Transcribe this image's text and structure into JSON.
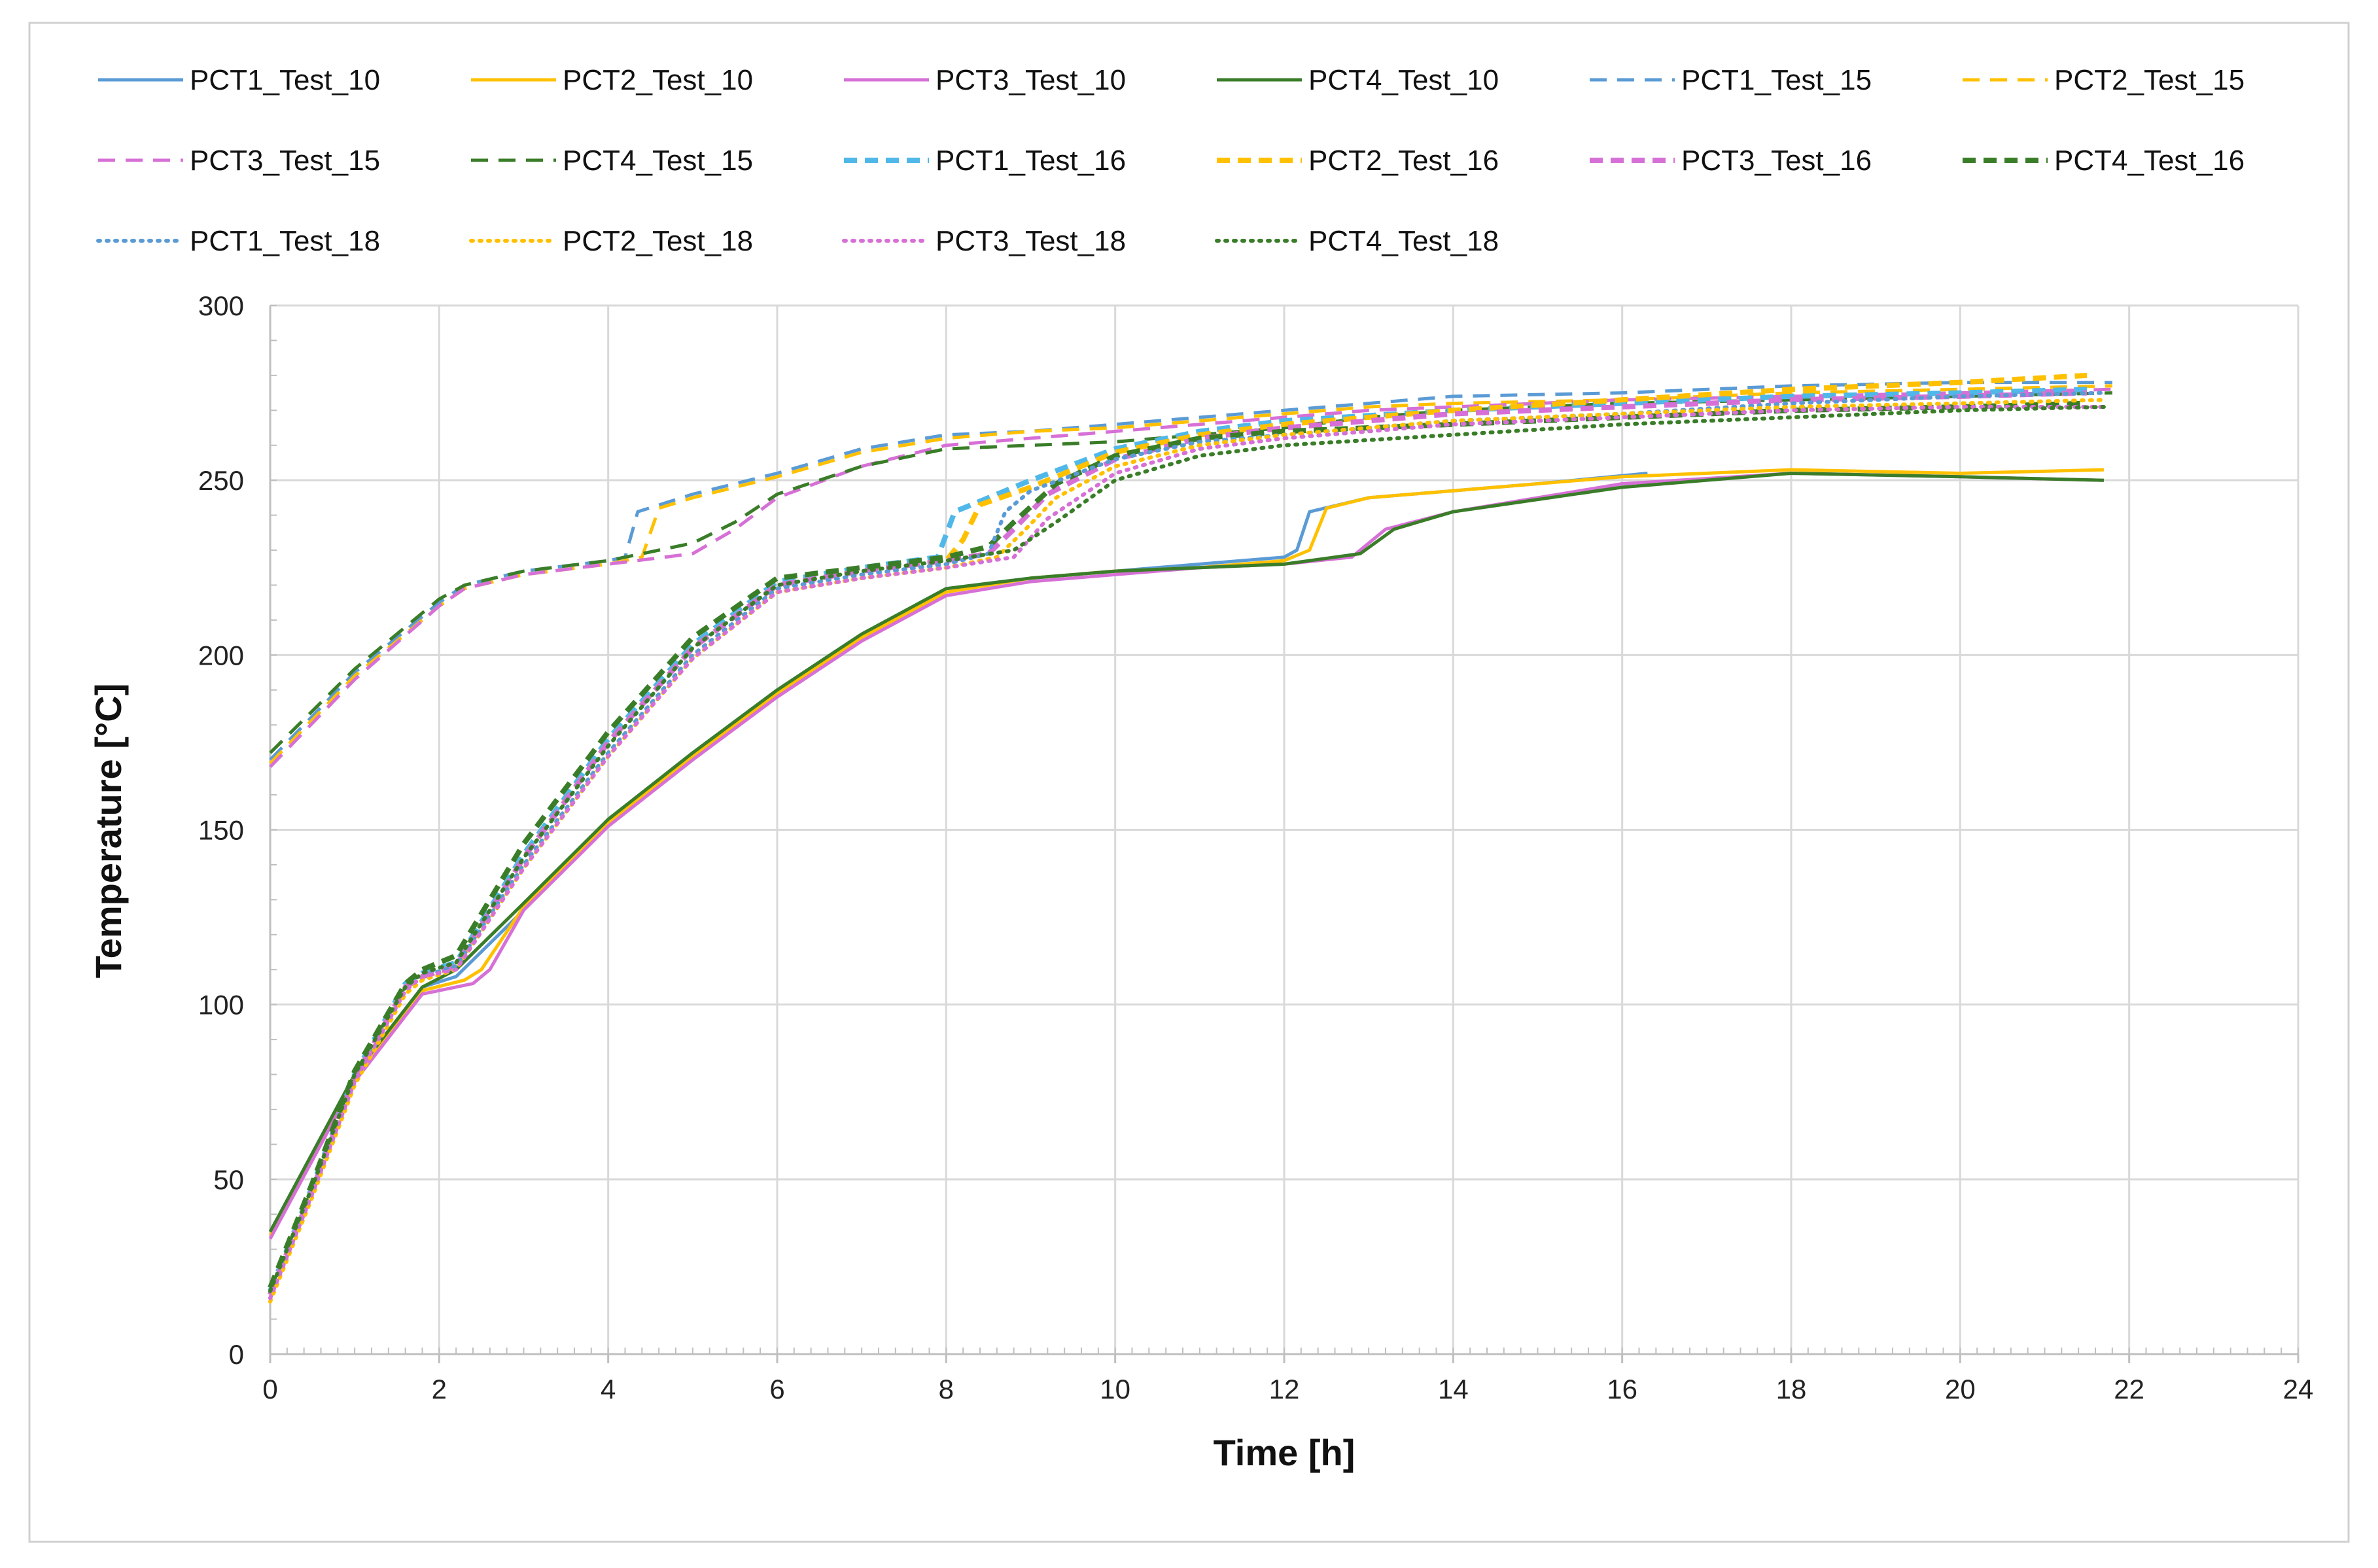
{
  "chart_data": {
    "type": "line",
    "title": "",
    "xlabel": "Time [h]",
    "ylabel": "Temperature [°C]",
    "xlim": [
      0,
      24
    ],
    "ylim": [
      0,
      300
    ],
    "xticks": [
      0,
      2,
      4,
      6,
      8,
      10,
      12,
      14,
      16,
      18,
      20,
      22,
      24
    ],
    "yticks": [
      0,
      50,
      100,
      150,
      200,
      250,
      300
    ],
    "grid": true,
    "legend_position": "top",
    "series": [
      {
        "name": "PCT1_Test_10",
        "color": "#5b9bd5",
        "style": "solid",
        "x": [
          0,
          1,
          1.8,
          2.2,
          3,
          4,
          5,
          6,
          7,
          8,
          9,
          10,
          11,
          12,
          12.15,
          12.3,
          13,
          14,
          15,
          16.3
        ],
        "y": [
          35,
          80,
          105,
          108,
          127,
          153,
          172,
          190,
          206,
          219,
          222,
          224,
          226,
          228,
          230,
          241,
          245,
          247,
          249,
          252
        ]
      },
      {
        "name": "PCT2_Test_10",
        "color": "#ffc000",
        "style": "solid",
        "x": [
          0,
          1,
          1.8,
          2.3,
          2.5,
          3,
          4,
          5,
          6,
          7,
          8,
          9,
          10,
          11,
          12,
          12.3,
          12.5,
          13,
          14,
          16,
          18,
          20,
          21.7
        ],
        "y": [
          34,
          79,
          104,
          107,
          110,
          128,
          152,
          171,
          189,
          205,
          218,
          222,
          224,
          225,
          227,
          230,
          242,
          245,
          247,
          251,
          253,
          252,
          253
        ]
      },
      {
        "name": "PCT3_Test_10",
        "color": "#d670d6",
        "style": "solid",
        "x": [
          0,
          1,
          1.8,
          2.4,
          2.6,
          3,
          4,
          5,
          6,
          7,
          8,
          9,
          10,
          11,
          12,
          12.8,
          13.2,
          14,
          16,
          18,
          20,
          21.7
        ],
        "y": [
          33,
          78,
          103,
          106,
          110,
          127,
          151,
          170,
          188,
          204,
          217,
          221,
          223,
          225,
          226,
          228,
          236,
          241,
          249,
          252,
          251,
          250
        ]
      },
      {
        "name": "PCT4_Test_10",
        "color": "#3a7d28",
        "style": "solid",
        "x": [
          0,
          1,
          1.8,
          2.2,
          3,
          4,
          5,
          6,
          7,
          8,
          9,
          10,
          11,
          12,
          12.9,
          13.3,
          14,
          16,
          18,
          20,
          21.7
        ],
        "y": [
          35,
          80,
          105,
          110,
          129,
          153,
          172,
          190,
          206,
          219,
          222,
          224,
          225,
          226,
          229,
          236,
          241,
          248,
          252,
          251,
          250
        ]
      },
      {
        "name": "PCT1_Test_15",
        "color": "#5b9bd5",
        "style": "dash",
        "x": [
          0,
          1,
          2,
          2.3,
          3,
          4,
          4.2,
          4.35,
          5,
          6,
          7,
          8,
          9,
          10,
          11,
          12,
          13,
          14,
          16,
          18,
          20,
          21.8
        ],
        "y": [
          170,
          195,
          215,
          220,
          224,
          227,
          228,
          241,
          246,
          252,
          259,
          263,
          264,
          266,
          268,
          270,
          272,
          274,
          275,
          277,
          278,
          278
        ]
      },
      {
        "name": "PCT2_Test_15",
        "color": "#ffc000",
        "style": "dash",
        "x": [
          0,
          1,
          2,
          2.3,
          3,
          4,
          4.4,
          4.6,
          5,
          6,
          7,
          8,
          9,
          10,
          11,
          12,
          13,
          14,
          16,
          18,
          20,
          21.8
        ],
        "y": [
          169,
          194,
          214,
          219,
          223,
          226,
          228,
          242,
          245,
          251,
          258,
          262,
          264,
          265,
          267,
          269,
          271,
          272,
          273,
          275,
          276,
          277
        ]
      },
      {
        "name": "PCT3_Test_15",
        "color": "#d670d6",
        "style": "dash",
        "x": [
          0,
          1,
          2,
          2.3,
          3,
          4,
          5,
          5.5,
          6,
          7,
          8,
          9,
          10,
          11,
          12,
          13,
          14,
          16,
          18,
          20,
          21.8
        ],
        "y": [
          168,
          193,
          214,
          219,
          223,
          226,
          229,
          236,
          245,
          254,
          260,
          262,
          264,
          266,
          268,
          270,
          271,
          273,
          274,
          275,
          276
        ]
      },
      {
        "name": "PCT4_Test_15",
        "color": "#3a7d28",
        "style": "dash",
        "x": [
          0,
          1,
          2,
          2.3,
          3,
          4,
          5,
          5.5,
          6,
          7,
          8,
          9,
          10,
          11,
          12,
          13,
          14,
          16,
          18,
          20,
          21.8
        ],
        "y": [
          172,
          196,
          216,
          220,
          224,
          227,
          232,
          238,
          246,
          254,
          259,
          260,
          261,
          263,
          265,
          268,
          270,
          272,
          273,
          274,
          275
        ]
      },
      {
        "name": "PCT1_Test_16",
        "color": "#4fb8e8",
        "style": "dash-thick",
        "x": [
          0,
          0.5,
          1,
          1.6,
          1.8,
          2.2,
          3,
          4,
          5,
          6,
          7,
          7.9,
          8.1,
          8.5,
          9,
          10,
          11,
          12,
          14,
          16,
          18,
          20,
          21.5
        ],
        "y": [
          18,
          48,
          80,
          106,
          109,
          112,
          143,
          176,
          203,
          221,
          225,
          228,
          241,
          245,
          250,
          259,
          264,
          267,
          270,
          272,
          274,
          275,
          276
        ]
      },
      {
        "name": "PCT2_Test_16",
        "color": "#ffc000",
        "style": "dash-thick",
        "x": [
          0,
          0.5,
          1,
          1.6,
          1.8,
          2.2,
          3,
          4,
          5,
          6,
          7,
          8,
          8.2,
          8.4,
          9,
          10,
          11,
          12,
          14,
          16,
          18,
          20,
          21.5
        ],
        "y": [
          17,
          47,
          79,
          105,
          108,
          111,
          142,
          175,
          202,
          220,
          224,
          227,
          233,
          243,
          248,
          258,
          263,
          266,
          270,
          273,
          276,
          278,
          280
        ]
      },
      {
        "name": "PCT3_Test_16",
        "color": "#d670d6",
        "style": "dash-thick",
        "x": [
          0,
          0.5,
          1,
          1.6,
          1.8,
          2.2,
          3,
          4,
          5,
          6,
          7,
          8,
          8.5,
          8.8,
          9.2,
          10,
          11,
          12,
          14,
          16,
          18,
          20,
          21.5
        ],
        "y": [
          17,
          47,
          79,
          105,
          108,
          111,
          142,
          175,
          202,
          220,
          224,
          227,
          229,
          236,
          246,
          256,
          262,
          265,
          269,
          271,
          273,
          274,
          275
        ]
      },
      {
        "name": "PCT4_Test_16",
        "color": "#3a7d28",
        "style": "dash-thick",
        "x": [
          0,
          0.5,
          1,
          1.6,
          1.8,
          2.2,
          3,
          4,
          5,
          6,
          7,
          8,
          8.5,
          8.8,
          9.3,
          10,
          11,
          12,
          14,
          16,
          18,
          20,
          21.5
        ],
        "y": [
          19,
          49,
          81,
          106,
          110,
          114,
          146,
          178,
          205,
          222,
          225,
          228,
          231,
          238,
          249,
          257,
          262,
          264,
          266,
          268,
          270,
          271,
          272
        ]
      },
      {
        "name": "PCT1_Test_18",
        "color": "#5b9bd5",
        "style": "dot",
        "x": [
          0,
          0.5,
          1,
          1.6,
          1.8,
          2.2,
          3,
          4,
          5,
          6,
          7,
          8,
          8.5,
          8.7,
          9,
          10,
          11,
          12,
          14,
          16,
          18,
          20,
          21.7
        ],
        "y": [
          16,
          46,
          78,
          104,
          108,
          111,
          140,
          172,
          200,
          219,
          223,
          226,
          229,
          241,
          247,
          256,
          261,
          263,
          267,
          269,
          272,
          274,
          275
        ]
      },
      {
        "name": "PCT2_Test_18",
        "color": "#ffc000",
        "style": "dot",
        "x": [
          0,
          0.5,
          1,
          1.6,
          1.8,
          2.2,
          3,
          4,
          5,
          6,
          7,
          8,
          8.6,
          8.9,
          9.3,
          10,
          11,
          12,
          14,
          16,
          18,
          20,
          21.7
        ],
        "y": [
          15,
          45,
          77,
          103,
          107,
          110,
          139,
          171,
          199,
          218,
          222,
          225,
          228,
          235,
          245,
          254,
          260,
          263,
          267,
          269,
          271,
          272,
          273
        ]
      },
      {
        "name": "PCT3_Test_18",
        "color": "#d670d6",
        "style": "dot",
        "x": [
          0,
          0.5,
          1,
          1.6,
          1.8,
          2.2,
          3,
          4,
          5,
          6,
          7,
          8,
          8.8,
          9.2,
          10,
          11,
          12,
          14,
          16,
          18,
          20,
          21.7
        ],
        "y": [
          16,
          46,
          78,
          104,
          108,
          110,
          139,
          171,
          199,
          218,
          222,
          225,
          228,
          239,
          252,
          259,
          262,
          266,
          268,
          270,
          271,
          271
        ]
      },
      {
        "name": "PCT4_Test_18",
        "color": "#3a7d28",
        "style": "dot",
        "x": [
          0,
          0.5,
          1,
          1.6,
          1.8,
          2.2,
          3,
          4,
          5,
          6,
          7,
          8,
          8.8,
          9.3,
          10,
          11,
          12,
          14,
          16,
          18,
          20,
          21.7
        ],
        "y": [
          18,
          48,
          80,
          105,
          109,
          112,
          142,
          174,
          202,
          220,
          224,
          227,
          230,
          238,
          250,
          257,
          260,
          263,
          266,
          268,
          270,
          271
        ]
      }
    ]
  }
}
